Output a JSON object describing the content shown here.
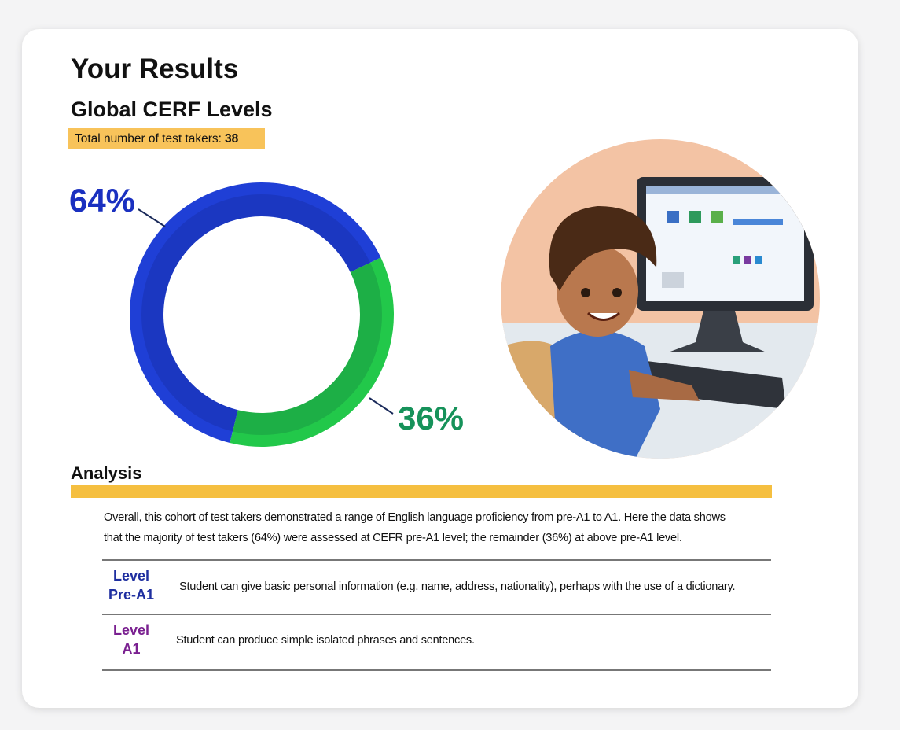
{
  "header": {
    "title": "Your Results",
    "subtitle": "Global CERF Levels",
    "test_takers_label": "Total number of test takers:",
    "test_takers": 38
  },
  "chart_data": {
    "type": "donut",
    "values": [
      64,
      36
    ],
    "value_labels": [
      "64%",
      "36%"
    ],
    "colors": [
      "#1f3fd6",
      "#22c84a"
    ],
    "label_colors": [
      "#1a30c0",
      "#16925a"
    ]
  },
  "analysis": {
    "title": "Analysis",
    "text_lines": [
      "Overall, this cohort of test takers demonstrated a range of English language proficiency from pre-A1 to A1. Here the data shows",
      "that the majority of test takers (64%) were assessed at CEFR pre-A1 level; the remainder (36%) at above pre-A1 level."
    ],
    "levels": [
      {
        "label_lines": [
          "Level",
          "Pre-A1"
        ],
        "description": "Student can give basic personal information (e.g. name, address, nationality), perhaps with the use of a dictionary."
      },
      {
        "label_lines": [
          "Level",
          "A1"
        ],
        "description": "Student can produce simple isolated phrases and sentences."
      }
    ]
  }
}
